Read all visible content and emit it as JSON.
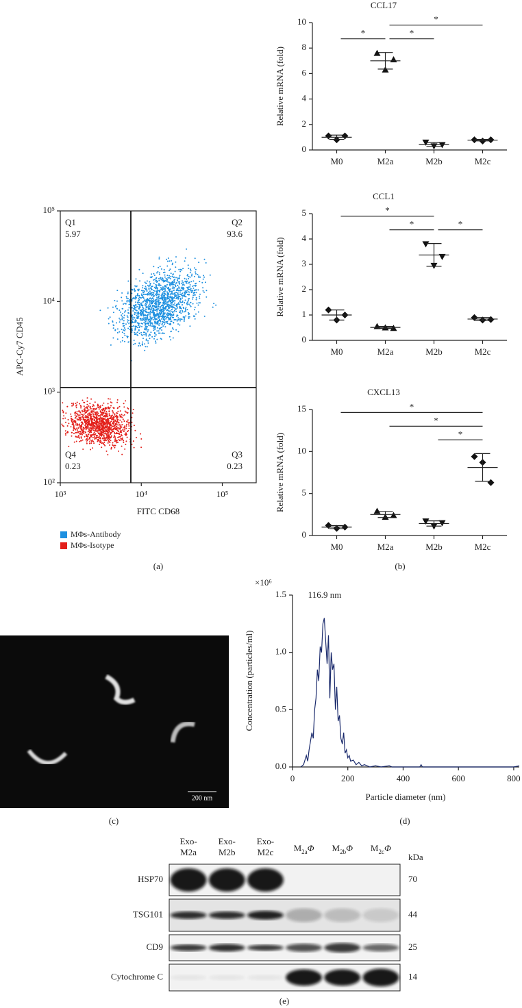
{
  "chart_data": [
    {
      "type": "scatter",
      "xlabel": "FITC CD68",
      "ylabel": "APC-Cy7 CD45",
      "xscale": "log",
      "yscale": "log",
      "xlim": [
        1000,
        262144
      ],
      "ylim": [
        100,
        100000
      ],
      "xticks": [
        {
          "value": 1000,
          "label": "10³"
        },
        {
          "value": 10000,
          "label": "10⁴"
        },
        {
          "value": 100000,
          "label": "10⁵"
        }
      ],
      "yticks": [
        {
          "value": 100,
          "label": "10²"
        },
        {
          "value": 1000,
          "label": "10³"
        },
        {
          "value": 10000,
          "label": "10⁴"
        },
        {
          "value": 100000,
          "label": "10⁵"
        }
      ],
      "quadrants": [
        {
          "name": "Q1",
          "value": 5.97
        },
        {
          "name": "Q2",
          "value": 93.6
        },
        {
          "name": "Q4",
          "value": 0.23
        },
        {
          "name": "Q3",
          "value": 0.23
        }
      ],
      "series": [
        {
          "name": "MΦs-Antibody",
          "color": "#1e90e0"
        },
        {
          "name": "MΦs-Isotype",
          "color": "#e3201b"
        }
      ]
    },
    {
      "type": "dot",
      "title": "CCL17",
      "ylabel": "Relative mRNA (fold)",
      "categories": [
        "M0",
        "M2a",
        "M2b",
        "M2c"
      ],
      "markers": [
        "diamond",
        "triangle",
        "triangle-down",
        "diamond"
      ],
      "points": [
        [
          1.1,
          0.8,
          1.1
        ],
        [
          7.6,
          6.3,
          7.1
        ],
        [
          0.6,
          0.3,
          0.4
        ],
        [
          0.8,
          0.7,
          0.8
        ]
      ],
      "mean": [
        1.0,
        7.0,
        0.43,
        0.77
      ],
      "sd": [
        0.17,
        0.65,
        0.15,
        0.06
      ],
      "ylim": [
        0,
        10
      ],
      "yticks": [
        0,
        2,
        4,
        6,
        8,
        10
      ],
      "comparisons": [
        {
          "groups": [
            "M0",
            "M2a"
          ],
          "label": "*"
        },
        {
          "groups": [
            "M2a",
            "M2b"
          ],
          "label": "*"
        },
        {
          "groups": [
            "M2a",
            "M2c"
          ],
          "label": "*"
        }
      ]
    },
    {
      "type": "dot",
      "title": "CCL1",
      "ylabel": "Relative mRNA (fold)",
      "categories": [
        "M0",
        "M2a",
        "M2b",
        "M2c"
      ],
      "markers": [
        "diamond",
        "triangle",
        "triangle-down",
        "diamond"
      ],
      "points": [
        [
          1.2,
          0.8,
          1.0
        ],
        [
          0.55,
          0.5,
          0.48
        ],
        [
          3.8,
          2.95,
          3.3
        ],
        [
          0.9,
          0.8,
          0.82
        ]
      ],
      "mean": [
        1.0,
        0.51,
        3.37,
        0.84
      ],
      "sd": [
        0.2,
        0.04,
        0.45,
        0.06
      ],
      "ylim": [
        0,
        5
      ],
      "yticks": [
        0,
        1,
        2,
        3,
        4,
        5
      ],
      "comparisons": [
        {
          "groups": [
            "M2a",
            "M2b"
          ],
          "label": "*"
        },
        {
          "groups": [
            "M2b",
            "M2c"
          ],
          "label": "*"
        },
        {
          "groups": [
            "M0",
            "M2b"
          ],
          "label": "*"
        }
      ]
    },
    {
      "type": "dot",
      "title": "CXCL13",
      "ylabel": "Relative mRNA (fold)",
      "categories": [
        "M0",
        "M2a",
        "M2b",
        "M2c"
      ],
      "markers": [
        "diamond",
        "triangle",
        "triangle-down",
        "diamond"
      ],
      "points": [
        [
          1.2,
          0.85,
          1.0
        ],
        [
          2.9,
          2.2,
          2.4
        ],
        [
          1.7,
          1.1,
          1.5
        ],
        [
          9.4,
          8.7,
          6.3
        ]
      ],
      "mean": [
        1.0,
        2.5,
        1.43,
        8.1
      ],
      "sd": [
        0.18,
        0.36,
        0.31,
        1.65
      ],
      "ylim": [
        0,
        15
      ],
      "yticks": [
        0,
        5,
        10,
        15
      ],
      "comparisons": [
        {
          "groups": [
            "M2b",
            "M2c"
          ],
          "label": "*"
        },
        {
          "groups": [
            "M2a",
            "M2c"
          ],
          "label": "*"
        },
        {
          "groups": [
            "M0",
            "M2c"
          ],
          "label": "*"
        }
      ]
    },
    {
      "type": "line",
      "xlabel": "Particle diameter (nm)",
      "ylabel": "Concentration (particles/ml)",
      "y_multiplier": "×10⁶",
      "annotation": "116.9 nm",
      "color": "#1a2a6c",
      "x": [
        30,
        40,
        50,
        55,
        60,
        70,
        75,
        80,
        85,
        90,
        95,
        100,
        105,
        110,
        115,
        120,
        125,
        130,
        135,
        140,
        145,
        150,
        155,
        160,
        165,
        170,
        175,
        180,
        185,
        190,
        195,
        200,
        205,
        210,
        220,
        230,
        240,
        250,
        260,
        280,
        300,
        320,
        350,
        360,
        400,
        460,
        465,
        470,
        600,
        700,
        800,
        820
      ],
      "values": [
        0,
        0.02,
        0.1,
        0.05,
        0.15,
        0.3,
        0.25,
        0.5,
        0.6,
        0.85,
        0.75,
        1.05,
        1.0,
        1.25,
        1.3,
        1.1,
        0.9,
        1.15,
        0.6,
        1.0,
        0.85,
        0.9,
        0.5,
        0.7,
        0.4,
        0.45,
        0.25,
        0.2,
        0.3,
        0.12,
        0.15,
        0.08,
        0.1,
        0.05,
        0.06,
        0.02,
        0.04,
        0.01,
        0.02,
        0,
        0.01,
        0,
        0.01,
        0,
        0,
        0,
        0.02,
        0,
        0,
        0,
        0,
        0.01
      ],
      "xlim": [
        0,
        820
      ],
      "ylim": [
        0,
        1.5
      ],
      "xticks": [
        0,
        200,
        400,
        600,
        800
      ],
      "yticks": [
        {
          "value": 0,
          "label": "0.0"
        },
        0.5,
        {
          "value": 1,
          "label": "1.0"
        },
        1.5
      ]
    }
  ],
  "tem_image": {
    "scale_bar": "200 nm"
  },
  "western_blot": {
    "lanes": [
      [
        "Exo-",
        "M2a"
      ],
      [
        "Exo-",
        "M2b"
      ],
      [
        "Exo-",
        "M2c"
      ],
      {
        "base": "M",
        "sub": "2a",
        "symbol": "Φ"
      },
      {
        "base": "M",
        "sub": "2b",
        "symbol": "Φ"
      },
      {
        "base": "M",
        "sub": "2c",
        "symbol": "Φ"
      }
    ],
    "unit": "kDa",
    "rows": [
      {
        "protein": "HSP70",
        "kda": 70
      },
      {
        "protein": "TSG101",
        "kda": 44
      },
      {
        "protein": "CD9",
        "kda": 25
      },
      {
        "protein": "Cytochrome C",
        "kda": 14
      }
    ]
  },
  "panel_labels": [
    "(a)",
    "(b)",
    "(c)",
    "(d)",
    "(e)"
  ]
}
